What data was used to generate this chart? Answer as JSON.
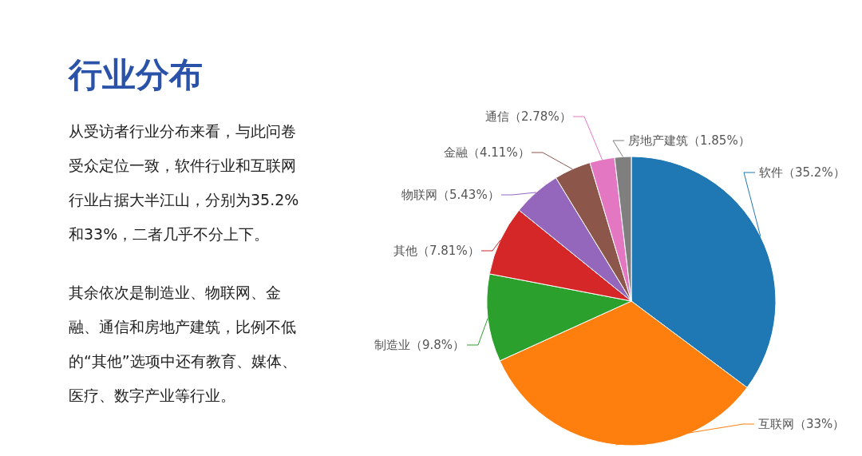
{
  "chart_data": {
    "type": "pie",
    "title": "行业分布",
    "annotations": [
      "从受访者行业分布来看，与此问卷受众定位一致，软件行业和互联网行业占据大半江山，分别为35.2%和33%，二者几乎不分上下。",
      "其余依次是制造业、物联网、金融、通信和房地产建筑，比例不低的“其他”选项中还有教育、媒体、医疗、数字产业等行业。"
    ],
    "categories": [
      "软件",
      "互联网",
      "制造业",
      "其他",
      "物联网",
      "金融",
      "通信",
      "房地产建筑"
    ],
    "values": [
      35.2,
      33,
      9.8,
      7.81,
      5.43,
      4.11,
      2.78,
      1.85
    ],
    "value_labels": [
      "（35.2%）",
      "（33%）",
      "（9.8%）",
      "（7.81%）",
      "（5.43%）",
      "（4.11%）",
      "（2.78%）",
      "（1.85%）"
    ],
    "colors": [
      "#1f77b4",
      "#ff7f0e",
      "#2ca02c",
      "#d62728",
      "#9467bd",
      "#8c564b",
      "#e377c2",
      "#7f7f7f"
    ]
  }
}
